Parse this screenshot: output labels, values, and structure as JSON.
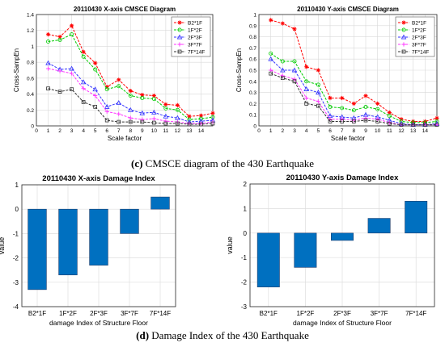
{
  "captions": [
    {
      "letter": "(c)",
      "text": "CMSCE diagram of the 430 Earthquake"
    },
    {
      "letter": "(d)",
      "text": "Damage Index of the 430 Earthquake"
    }
  ],
  "colors": {
    "bar_fill": "#0070c0",
    "bar_edge": "#1f3f6e",
    "series": [
      "#ff0000",
      "#00cc00",
      "#3333ff",
      "#ff33ff",
      "#333333"
    ]
  },
  "chart_data": [
    {
      "type": "line",
      "title": "20110430 X-axis CMSCE Diagram",
      "xlabel": "Scale factor",
      "ylabel": "Cross-SampEn",
      "xlim": [
        0,
        15
      ],
      "ylim": [
        0,
        1.4
      ],
      "xticks": [
        "0",
        "1",
        "2",
        "3",
        "4",
        "5",
        "6",
        "7",
        "8",
        "9",
        "10",
        "11",
        "12",
        "13",
        "14"
      ],
      "yticks": [
        "0",
        "0.2",
        "0.4",
        "0.6",
        "0.8",
        "1",
        "1.2",
        "1.4"
      ],
      "grid": true,
      "legend": "top-right",
      "x": [
        1,
        2,
        3,
        4,
        5,
        6,
        7,
        8,
        9,
        10,
        11,
        12,
        13,
        14,
        15
      ],
      "series": [
        {
          "name": "B2*1F",
          "marker": "star",
          "values": [
            1.15,
            1.12,
            1.26,
            0.93,
            0.79,
            0.49,
            0.58,
            0.44,
            0.39,
            0.38,
            0.27,
            0.26,
            0.12,
            0.13,
            0.16
          ]
        },
        {
          "name": "1F*2F",
          "marker": "circle",
          "values": [
            1.06,
            1.08,
            1.15,
            0.87,
            0.71,
            0.46,
            0.5,
            0.38,
            0.35,
            0.34,
            0.22,
            0.2,
            0.08,
            0.09,
            0.11
          ]
        },
        {
          "name": "2F*3F",
          "marker": "triangle",
          "values": [
            0.79,
            0.71,
            0.72,
            0.55,
            0.46,
            0.24,
            0.29,
            0.2,
            0.16,
            0.17,
            0.12,
            0.1,
            0.05,
            0.06,
            0.07
          ]
        },
        {
          "name": "3F*7F",
          "marker": "plus",
          "values": [
            0.72,
            0.69,
            0.66,
            0.47,
            0.38,
            0.18,
            0.15,
            0.1,
            0.08,
            0.09,
            0.06,
            0.05,
            0.03,
            0.03,
            0.05
          ]
        },
        {
          "name": "7F*14F",
          "marker": "square",
          "values": [
            0.47,
            0.43,
            0.46,
            0.3,
            0.24,
            0.07,
            0.05,
            0.05,
            0.05,
            0.04,
            0.03,
            0.03,
            0.02,
            0.02,
            0.03
          ]
        }
      ]
    },
    {
      "type": "line",
      "title": "20110430 Y-axis CMSCE Diagram",
      "xlabel": "Scale factor",
      "ylabel": "Cross-SampEn",
      "xlim": [
        0,
        15
      ],
      "ylim": [
        0,
        1
      ],
      "xticks": [
        "0",
        "1",
        "2",
        "3",
        "4",
        "5",
        "6",
        "7",
        "8",
        "9",
        "10",
        "11",
        "12",
        "13",
        "14"
      ],
      "yticks": [
        "0",
        "0.1",
        "0.2",
        "0.3",
        "0.4",
        "0.5",
        "0.6",
        "0.7",
        "0.8",
        "0.9",
        "1"
      ],
      "grid": true,
      "legend": "top-right",
      "x": [
        1,
        2,
        3,
        4,
        5,
        6,
        7,
        8,
        9,
        10,
        11,
        12,
        13,
        14,
        15
      ],
      "series": [
        {
          "name": "B2*1F",
          "marker": "star",
          "values": [
            0.95,
            0.92,
            0.87,
            0.53,
            0.5,
            0.25,
            0.25,
            0.2,
            0.27,
            0.2,
            0.12,
            0.06,
            0.04,
            0.04,
            0.07
          ]
        },
        {
          "name": "1F*2F",
          "marker": "circle",
          "values": [
            0.65,
            0.58,
            0.58,
            0.4,
            0.37,
            0.17,
            0.16,
            0.14,
            0.17,
            0.15,
            0.09,
            0.04,
            0.03,
            0.03,
            0.04
          ]
        },
        {
          "name": "2F*3F",
          "marker": "triangle",
          "values": [
            0.6,
            0.5,
            0.5,
            0.33,
            0.3,
            0.09,
            0.08,
            0.07,
            0.1,
            0.08,
            0.05,
            0.02,
            0.01,
            0.01,
            0.02
          ]
        },
        {
          "name": "3F*7F",
          "marker": "plus",
          "values": [
            0.5,
            0.45,
            0.42,
            0.25,
            0.22,
            0.06,
            0.06,
            0.05,
            0.07,
            0.06,
            0.03,
            0.01,
            0.01,
            0.01,
            0.01
          ]
        },
        {
          "name": "7F*14F",
          "marker": "square",
          "values": [
            0.47,
            0.43,
            0.4,
            0.2,
            0.18,
            0.04,
            0.04,
            0.04,
            0.05,
            0.04,
            0.02,
            0.01,
            0.01,
            0.01,
            0.01
          ]
        }
      ]
    },
    {
      "type": "bar",
      "title": "20110430 X-axis Damage Index",
      "xlabel": "damage Index of Structure Floor",
      "ylabel": "value",
      "categories": [
        "B2*1F",
        "1F*2F",
        "2F*3F",
        "3F*7F",
        "7F*14F"
      ],
      "values": [
        -3.3,
        -2.7,
        -2.3,
        -1.0,
        0.5
      ],
      "ylim": [
        -4,
        1
      ],
      "yticks": [
        "-4",
        "-3",
        "-2",
        "-1",
        "0",
        "1"
      ],
      "grid": true
    },
    {
      "type": "bar",
      "title": "20110430 Y-axis Damage Index",
      "xlabel": "damage Index of Structure Floor",
      "ylabel": "value",
      "categories": [
        "B2*1F",
        "1F*2F",
        "2F*3F",
        "3F*7F",
        "7F*14F"
      ],
      "values": [
        -2.2,
        -1.4,
        -0.3,
        0.6,
        1.3
      ],
      "ylim": [
        -3,
        2
      ],
      "yticks": [
        "-3",
        "-2",
        "-1",
        "0",
        "1",
        "2"
      ],
      "grid": true
    }
  ]
}
